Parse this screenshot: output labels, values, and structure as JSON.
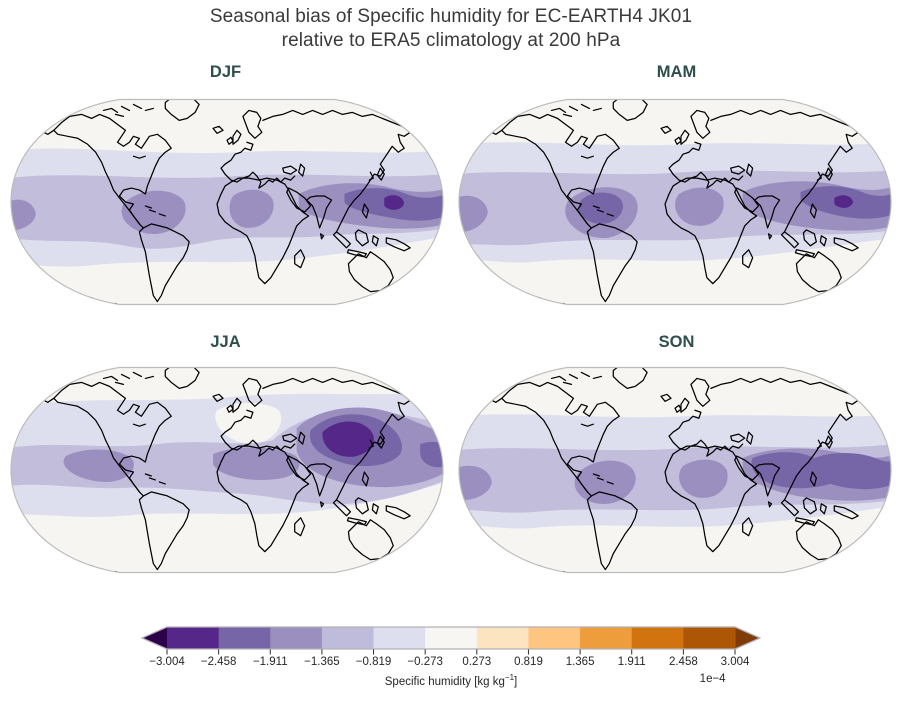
{
  "title": {
    "line1": "Seasonal bias of Specific humidity for EC-EARTH4 JK01",
    "line2": "relative to ERA5 climatology at 200 hPa"
  },
  "panels": [
    {
      "label": "DJF"
    },
    {
      "label": "MAM"
    },
    {
      "label": "JJA"
    },
    {
      "label": "SON"
    }
  ],
  "colorbar": {
    "label_prefix": "Specific humidity [kg kg",
    "label_sup": "−1",
    "label_suffix": "]",
    "multiplier": "1e−4",
    "ticks": [
      "−3.004",
      "−2.458",
      "−1.911",
      "−1.365",
      "−0.819",
      "−0.273",
      "0.273",
      "0.819",
      "1.365",
      "1.911",
      "2.458",
      "3.004"
    ],
    "segment_colors": [
      "#542788",
      "#7766A7",
      "#9B8FC0",
      "#BFBBDA",
      "#DEDFEE",
      "#F7F6F2",
      "#FDE4C1",
      "#FDC57F",
      "#EE9D3C",
      "#D1740F",
      "#AD5606"
    ],
    "extend_colors": {
      "left": "#2D004B",
      "right": "#7F3B08"
    },
    "outline_color": "#b3b0b5",
    "tick_color": "#2b2b2b"
  },
  "colors": {
    "title_text": "#3a3a3a",
    "panel_title_text": "#2e4f4c",
    "map_background": "#f6f5f1",
    "map_border": "#bcbcbc",
    "coastline": "#000000",
    "shade_levels": [
      "#DEDFEE",
      "#C1BDDB",
      "#9B8FC0",
      "#7766A7",
      "#542788"
    ]
  },
  "chart_data": {
    "type": "heatmap",
    "subtype": "filled_contour_world_maps",
    "projection": "Robinson",
    "title": "Seasonal bias of Specific humidity for EC-EARTH4 JK01 relative to ERA5 climatology at 200 hPa",
    "model": "EC-EARTH4 JK01",
    "reference": "ERA5 climatology",
    "pressure_level": "200 hPa",
    "panels": [
      "DJF",
      "MAM",
      "JJA",
      "SON"
    ],
    "colorbar_label": "Specific humidity [kg kg⁻¹]",
    "scale_factor": "1e−4",
    "contour_levels": [
      -3.004,
      -2.458,
      -1.911,
      -1.365,
      -0.819,
      -0.273,
      0.273,
      0.819,
      1.365,
      1.911,
      2.458,
      3.004
    ],
    "colormap": "PuOr_r (purple = negative bias, orange = positive bias)",
    "extend": "both",
    "observations": {
      "DJF": "Negative (purple) bias band across the tropics; strongest over the Maritime Continent / West Pacific, Amazon and central Africa",
      "MAM": "Negative bias band across the tropics with maxima over the Amazon, central Africa and the Maritime Continent",
      "JJA": "Strong negative bias centered over South Asia / Tibetan Plateau extending across Northern Hemisphere subtropics",
      "SON": "Negative bias band across the tropics; strongest from the Indian Ocean through the West Pacific"
    }
  }
}
